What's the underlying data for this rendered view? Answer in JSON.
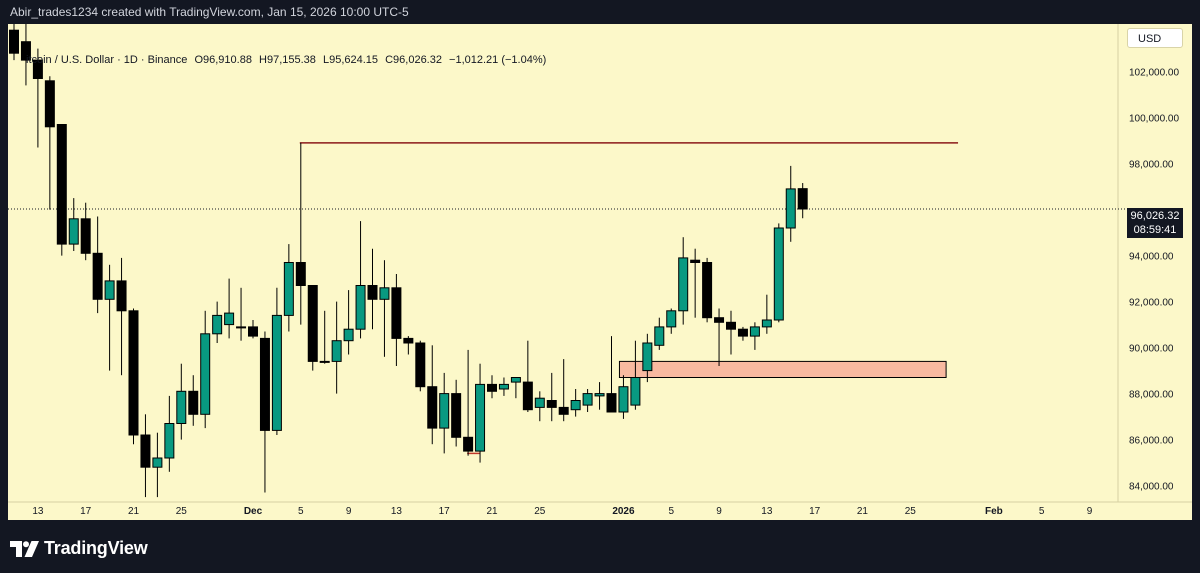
{
  "header": {
    "attribution": "Abir_trades1234 created with TradingView.com, Jan 15, 2026 10:00 UTC-5"
  },
  "legend": {
    "symbol": "itcoin / U.S. Dollar · 1D · Binance",
    "open": "O96,910.88",
    "high": "H97,155.38",
    "low": "L95,624.15",
    "close": "C96,026.32",
    "change": "−1,012.21 (−1.04%)"
  },
  "currency_button": "USD",
  "last_price": {
    "price": "96,026.32",
    "countdown": "08:59:41",
    "value": 96026.32
  },
  "footer": {
    "brand": "TradingView"
  },
  "colors": {
    "background": "#fcf8c9",
    "up": "#089981",
    "down": "#000000",
    "resistance": "#8b1a1a",
    "zone_fill": "#f8b9a0",
    "zone_border": "#000000"
  },
  "chart_data": {
    "type": "candlestick",
    "title": "",
    "symbol": "Bitcoin / U.S. Dollar",
    "timeframe": "1D",
    "exchange": "Binance",
    "ylim": [
      83200,
      103200
    ],
    "y_ticks": [
      84000,
      86000,
      88000,
      90000,
      92000,
      94000,
      96000,
      98000,
      100000,
      102000
    ],
    "y_tick_labels": [
      "84,000.00",
      "86,000.00",
      "88,000.00",
      "90,000.00",
      "92,000.00",
      "94,000.00",
      "96,000.00",
      "98,000.00",
      "100,000.00",
      "102,000.00"
    ],
    "x_tick_labels": [
      {
        "label": "13",
        "index": 2
      },
      {
        "label": "17",
        "index": 6
      },
      {
        "label": "21",
        "index": 10
      },
      {
        "label": "25",
        "index": 14
      },
      {
        "label": "Dec",
        "index": 20,
        "bold": true
      },
      {
        "label": "5",
        "index": 24
      },
      {
        "label": "9",
        "index": 28
      },
      {
        "label": "13",
        "index": 32
      },
      {
        "label": "17",
        "index": 36
      },
      {
        "label": "21",
        "index": 40
      },
      {
        "label": "25",
        "index": 44
      },
      {
        "label": "2026",
        "index": 51,
        "bold": true
      },
      {
        "label": "5",
        "index": 55
      },
      {
        "label": "9",
        "index": 59
      },
      {
        "label": "13",
        "index": 63
      },
      {
        "label": "17",
        "index": 67
      },
      {
        "label": "21",
        "index": 71
      },
      {
        "label": "25",
        "index": 75
      },
      {
        "label": "Feb",
        "index": 82,
        "bold": true
      },
      {
        "label": "5",
        "index": 86
      },
      {
        "label": "9",
        "index": 90
      }
    ],
    "candles": [
      {
        "o": 103800,
        "h": 105000,
        "l": 102500,
        "c": 102800
      },
      {
        "o": 103300,
        "h": 104700,
        "l": 101400,
        "c": 102500
      },
      {
        "o": 102500,
        "h": 103000,
        "l": 98700,
        "c": 101700
      },
      {
        "o": 101600,
        "h": 101800,
        "l": 96000,
        "c": 99600
      },
      {
        "o": 99700,
        "h": 99600,
        "l": 94000,
        "c": 94500
      },
      {
        "o": 94500,
        "h": 96500,
        "l": 94200,
        "c": 95600
      },
      {
        "o": 95600,
        "h": 96300,
        "l": 93800,
        "c": 94100
      },
      {
        "o": 94100,
        "h": 95700,
        "l": 91500,
        "c": 92100
      },
      {
        "o": 92100,
        "h": 93600,
        "l": 89000,
        "c": 92900
      },
      {
        "o": 92900,
        "h": 93900,
        "l": 88800,
        "c": 91600
      },
      {
        "o": 91600,
        "h": 91700,
        "l": 85800,
        "c": 86200
      },
      {
        "o": 86200,
        "h": 87100,
        "l": 83500,
        "c": 84800
      },
      {
        "o": 84800,
        "h": 86300,
        "l": 83500,
        "c": 85200
      },
      {
        "o": 85200,
        "h": 87900,
        "l": 84600,
        "c": 86700
      },
      {
        "o": 86700,
        "h": 89300,
        "l": 86000,
        "c": 88100
      },
      {
        "o": 88100,
        "h": 88800,
        "l": 86600,
        "c": 87100
      },
      {
        "o": 87100,
        "h": 91600,
        "l": 86500,
        "c": 90600
      },
      {
        "o": 90600,
        "h": 92000,
        "l": 90200,
        "c": 91400
      },
      {
        "o": 91000,
        "h": 93000,
        "l": 90400,
        "c": 91500
      },
      {
        "o": 90900,
        "h": 92600,
        "l": 90300,
        "c": 90900
      },
      {
        "o": 90900,
        "h": 91200,
        "l": 90400,
        "c": 90500
      },
      {
        "o": 90400,
        "h": 90700,
        "l": 83700,
        "c": 86400
      },
      {
        "o": 86400,
        "h": 92600,
        "l": 86200,
        "c": 91400
      },
      {
        "o": 91400,
        "h": 94500,
        "l": 90700,
        "c": 93700
      },
      {
        "o": 93700,
        "h": 98900,
        "l": 91000,
        "c": 92700
      },
      {
        "o": 92700,
        "h": 92700,
        "l": 89000,
        "c": 89400
      },
      {
        "o": 89400,
        "h": 91600,
        "l": 89300,
        "c": 89400
      },
      {
        "o": 89400,
        "h": 92000,
        "l": 88000,
        "c": 90300
      },
      {
        "o": 90300,
        "h": 92500,
        "l": 89700,
        "c": 90800
      },
      {
        "o": 90800,
        "h": 95500,
        "l": 90400,
        "c": 92700
      },
      {
        "o": 92700,
        "h": 94300,
        "l": 90800,
        "c": 92100
      },
      {
        "o": 92100,
        "h": 93800,
        "l": 89600,
        "c": 92600
      },
      {
        "o": 92600,
        "h": 93200,
        "l": 89200,
        "c": 90400
      },
      {
        "o": 90400,
        "h": 90500,
        "l": 89700,
        "c": 90200
      },
      {
        "o": 90200,
        "h": 90300,
        "l": 88100,
        "c": 88300
      },
      {
        "o": 88300,
        "h": 90100,
        "l": 85800,
        "c": 86500
      },
      {
        "o": 86500,
        "h": 88900,
        "l": 85400,
        "c": 88000
      },
      {
        "o": 88000,
        "h": 88600,
        "l": 85700,
        "c": 86100
      },
      {
        "o": 86100,
        "h": 89900,
        "l": 85300,
        "c": 85500
      },
      {
        "o": 85500,
        "h": 89300,
        "l": 85000,
        "c": 88400
      },
      {
        "o": 88400,
        "h": 88800,
        "l": 87800,
        "c": 88100
      },
      {
        "o": 88200,
        "h": 88700,
        "l": 87900,
        "c": 88400
      },
      {
        "o": 88500,
        "h": 88700,
        "l": 87800,
        "c": 88700
      },
      {
        "o": 88500,
        "h": 90300,
        "l": 87200,
        "c": 87300
      },
      {
        "o": 87400,
        "h": 88100,
        "l": 86800,
        "c": 87800
      },
      {
        "o": 87700,
        "h": 88900,
        "l": 86800,
        "c": 87400
      },
      {
        "o": 87400,
        "h": 89500,
        "l": 86800,
        "c": 87100
      },
      {
        "o": 87300,
        "h": 88200,
        "l": 87000,
        "c": 87700
      },
      {
        "o": 87500,
        "h": 88200,
        "l": 87200,
        "c": 88000
      },
      {
        "o": 87900,
        "h": 88500,
        "l": 87300,
        "c": 88000
      },
      {
        "o": 88000,
        "h": 90500,
        "l": 87300,
        "c": 87200
      },
      {
        "o": 87200,
        "h": 88800,
        "l": 86900,
        "c": 88300
      },
      {
        "o": 87500,
        "h": 90300,
        "l": 87300,
        "c": 88700
      },
      {
        "o": 89000,
        "h": 90600,
        "l": 88500,
        "c": 90200
      },
      {
        "o": 90100,
        "h": 91300,
        "l": 89900,
        "c": 90900
      },
      {
        "o": 90900,
        "h": 91700,
        "l": 90600,
        "c": 91600
      },
      {
        "o": 91600,
        "h": 94800,
        "l": 91000,
        "c": 93900
      },
      {
        "o": 93800,
        "h": 94300,
        "l": 91300,
        "c": 93700
      },
      {
        "o": 93700,
        "h": 93900,
        "l": 91100,
        "c": 91300
      },
      {
        "o": 91300,
        "h": 91700,
        "l": 89200,
        "c": 91100
      },
      {
        "o": 91100,
        "h": 91600,
        "l": 89700,
        "c": 90800
      },
      {
        "o": 90800,
        "h": 90900,
        "l": 90300,
        "c": 90500
      },
      {
        "o": 90500,
        "h": 91100,
        "l": 89900,
        "c": 90900
      },
      {
        "o": 90900,
        "h": 92300,
        "l": 90600,
        "c": 91200
      },
      {
        "o": 91200,
        "h": 95400,
        "l": 91100,
        "c": 95200
      },
      {
        "o": 95200,
        "h": 97900,
        "l": 94600,
        "c": 96900
      },
      {
        "o": 96910.88,
        "h": 97155.38,
        "l": 95624.15,
        "c": 96026.32
      }
    ],
    "annotations": [
      {
        "type": "horizontal-line",
        "label": "resistance",
        "price": 98900,
        "from_index": 24,
        "to_index": 79
      },
      {
        "type": "rectangle",
        "label": "demand-zone",
        "price_low": 88700,
        "price_high": 89400,
        "from_index": 51,
        "to_index": 78
      },
      {
        "type": "horizontal-line",
        "label": "low-marker",
        "price": 85400,
        "from_index": 38,
        "to_index": 39
      }
    ],
    "last_price_line": 96026.32,
    "grid": false,
    "legend_position": "top-left"
  }
}
